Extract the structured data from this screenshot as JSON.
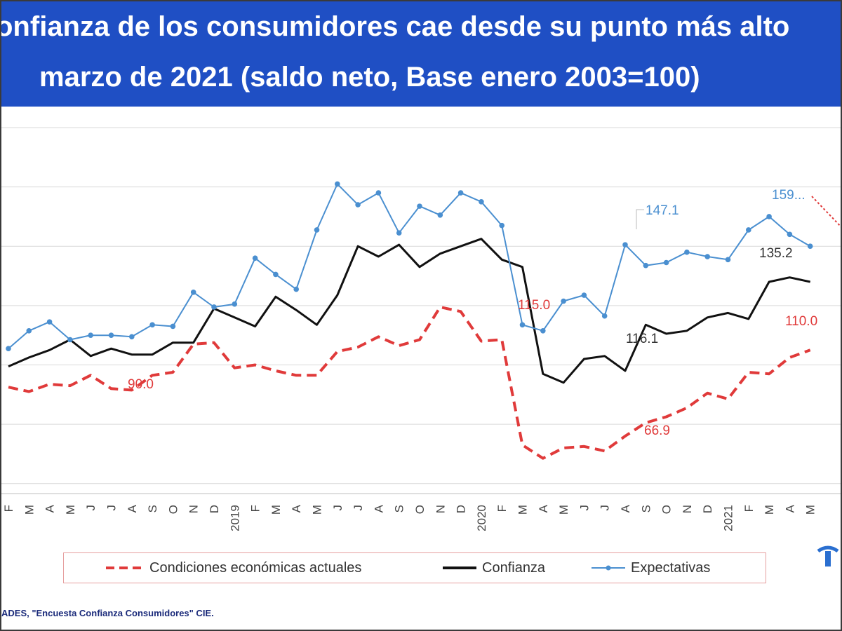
{
  "header": {
    "title_line1": "onfianza de los consumidores cae desde su punto más alto",
    "title_line2": "marzo de 2021 (saldo neto, Base enero 2003=100)"
  },
  "colors": {
    "title_band": "#1f4fc4",
    "condiciones": "#e03a3a",
    "confianza": "#111111",
    "expectativas": "#4a8fd0",
    "callout": "#e03a3a"
  },
  "chart_data": {
    "type": "line",
    "x": [
      "F",
      "M",
      "A",
      "M",
      "J",
      "J",
      "A",
      "S",
      "O",
      "N",
      "D",
      "2019",
      "F",
      "M",
      "A",
      "M",
      "J",
      "J",
      "A",
      "S",
      "O",
      "N",
      "D",
      "2020",
      "F",
      "M",
      "A",
      "M",
      "J",
      "J",
      "A",
      "S",
      "O",
      "N",
      "D",
      "2021",
      "F",
      "M",
      "A",
      "M"
    ],
    "x_year_labels": [
      "2019",
      "2020",
      "2021"
    ],
    "series": [
      {
        "name": "Condiciones económicas actuales",
        "style": "dashed",
        "values": [
          92.5,
          91.0,
          93.5,
          93.0,
          96.5,
          92.0,
          91.5,
          96.5,
          97.5,
          107.0,
          107.5,
          99.0,
          100.0,
          98.0,
          96.5,
          96.5,
          104.5,
          106.0,
          109.5,
          106.5,
          108.5,
          119.5,
          118.0,
          108.0,
          108.5,
          73.0,
          68.5,
          72.0,
          72.5,
          71.0,
          76.0,
          80.5,
          82.5,
          85.5,
          90.5,
          88.5,
          97.5,
          97.0,
          102.5,
          105.0
        ]
      },
      {
        "name": "Confianza",
        "style": "solid",
        "values": [
          99.5,
          102.5,
          105.0,
          108.5,
          103.0,
          105.5,
          103.5,
          103.5,
          107.5,
          107.5,
          119.0,
          116.0,
          113.0,
          123.0,
          118.5,
          113.5,
          123.5,
          140.0,
          136.5,
          140.5,
          133.0,
          137.5,
          140.0,
          142.5,
          135.5,
          133.0,
          97.0,
          94.0,
          102.0,
          103.0,
          98.0,
          113.5,
          110.5,
          111.5,
          116.0,
          117.5,
          115.5,
          128.0,
          129.5,
          128.0
        ]
      },
      {
        "name": "Expectativas",
        "style": "solid-markers",
        "values": [
          105.5,
          111.5,
          114.5,
          108.5,
          110.0,
          110.0,
          109.5,
          113.5,
          113.0,
          124.5,
          119.5,
          120.5,
          136.0,
          130.5,
          125.5,
          145.5,
          161.0,
          154.0,
          158.0,
          144.5,
          153.5,
          150.5,
          158.0,
          155.0,
          147.0,
          113.5,
          111.5,
          121.5,
          123.5,
          116.5,
          140.5,
          133.5,
          134.5,
          138.0,
          136.5,
          135.5,
          145.5,
          150.0,
          144.0,
          140.0
        ]
      }
    ],
    "annotations": [
      {
        "text": "147.1",
        "series": "Expectativas"
      },
      {
        "text": "159...",
        "series": "Expectativas"
      },
      {
        "text": "135.2",
        "series": "Confianza"
      },
      {
        "text": "116.1",
        "series": "Confianza"
      },
      {
        "text": "115.0",
        "series": "Condiciones económicas actuales"
      },
      {
        "text": "110.0",
        "series": "Condiciones económicas actuales"
      },
      {
        "text": "90.0",
        "series": "Condiciones económicas actuales"
      },
      {
        "text": "66.9",
        "series": "Condiciones económicas actuales"
      }
    ],
    "ylim": [
      50,
      180
    ],
    "grid": true,
    "legend": "bottom"
  },
  "legend": {
    "condiciones": "Condiciones económicas actuales",
    "confianza": "Confianza",
    "expectativas": "Expectativas"
  },
  "source": "ADES, \"Encuesta Confianza Consumidores\" CIE."
}
